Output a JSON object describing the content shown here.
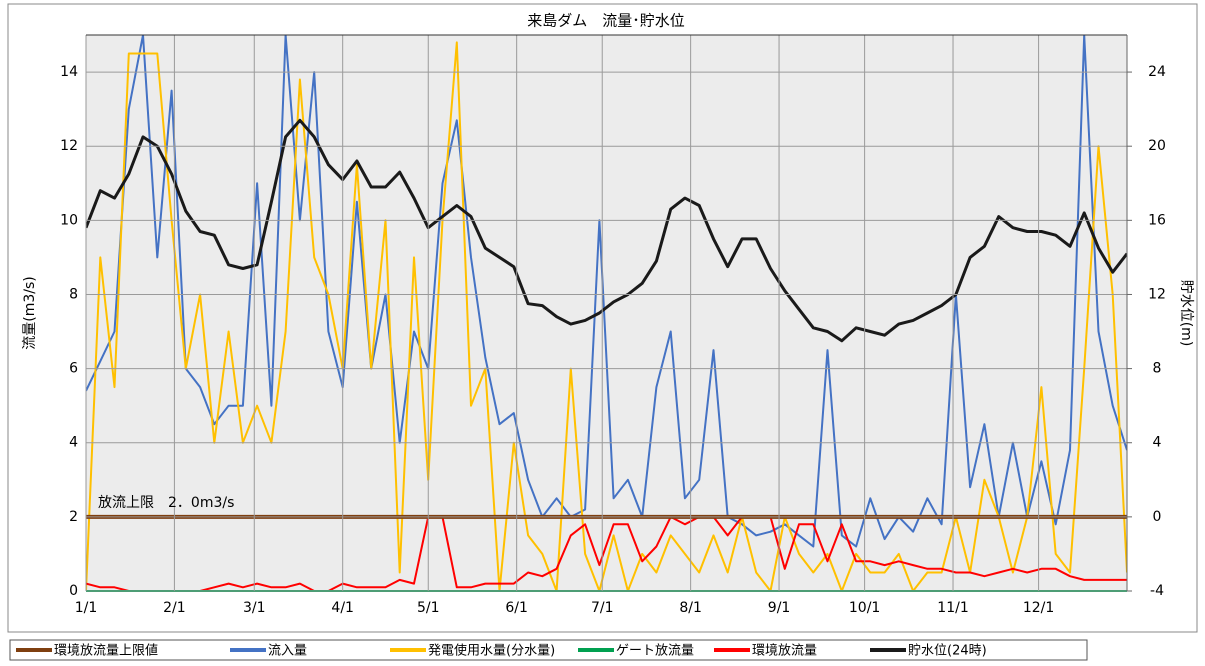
{
  "chart_data": {
    "type": "line",
    "title": "来島ダム　流量･貯水位",
    "ylabel": "流量(m3/s)",
    "y2label": "貯水位(m)",
    "annotation": "放流上限　2．0m3/s",
    "xlim": [
      0,
      365
    ],
    "xticks": [
      {
        "value": 0,
        "label": "1/1"
      },
      {
        "value": 31,
        "label": "2/1"
      },
      {
        "value": 59,
        "label": "3/1"
      },
      {
        "value": 90,
        "label": "4/1"
      },
      {
        "value": 120,
        "label": "5/1"
      },
      {
        "value": 151,
        "label": "6/1"
      },
      {
        "value": 181,
        "label": "7/1"
      },
      {
        "value": 212,
        "label": "8/1"
      },
      {
        "value": 243,
        "label": "9/1"
      },
      {
        "value": 273,
        "label": "10/1"
      },
      {
        "value": 304,
        "label": "11/1"
      },
      {
        "value": 334,
        "label": "12/1"
      }
    ],
    "ylim": [
      0,
      15
    ],
    "yticks": [
      0,
      2,
      4,
      6,
      8,
      10,
      12,
      14
    ],
    "y2lim": [
      -4,
      26
    ],
    "y2ticks": [
      -4,
      0,
      4,
      8,
      12,
      16,
      20,
      24
    ],
    "grid": true,
    "x": [
      0,
      5,
      10,
      15,
      20,
      25,
      30,
      35,
      40,
      45,
      50,
      55,
      60,
      65,
      70,
      75,
      80,
      85,
      90,
      95,
      100,
      105,
      110,
      115,
      120,
      125,
      130,
      135,
      140,
      145,
      150,
      155,
      160,
      165,
      170,
      175,
      180,
      185,
      190,
      195,
      200,
      205,
      210,
      215,
      220,
      225,
      230,
      235,
      240,
      245,
      250,
      255,
      260,
      265,
      270,
      275,
      280,
      285,
      290,
      295,
      300,
      305,
      310,
      315,
      320,
      325,
      330,
      335,
      340,
      345,
      350,
      355,
      360,
      365
    ],
    "series": [
      {
        "name": "環境放流量上限値",
        "color": "#7f3f10",
        "x": [
          0,
          365
        ],
        "values": [
          2,
          2
        ]
      },
      {
        "name": "流入量",
        "color": "#4472c4",
        "values": [
          5.4,
          6.2,
          7,
          13,
          15,
          9,
          13.5,
          6,
          5.5,
          4.5,
          5,
          5,
          11,
          5,
          15,
          10,
          14,
          7,
          5.5,
          10.5,
          6,
          8,
          4,
          7,
          6,
          11,
          12.7,
          9,
          6.3,
          4.5,
          4.8,
          3,
          2,
          2.5,
          2,
          2.2,
          10,
          2.5,
          3,
          2,
          5.5,
          7,
          2.5,
          3,
          6.5,
          2,
          1.8,
          1.5,
          1.6,
          1.8,
          1.5,
          1.2,
          6.5,
          1.5,
          1.2,
          2.5,
          1.4,
          2,
          1.6,
          2.5,
          1.8,
          8,
          2.8,
          4.5,
          2,
          4,
          2,
          3.5,
          1.8,
          3.8,
          15,
          7,
          5,
          3.8
        ]
      },
      {
        "name": "発電使用水量(分水量)",
        "color": "#ffc000",
        "values": [
          0,
          9,
          5.5,
          14.5,
          14.5,
          14.5,
          10,
          6,
          8,
          4,
          7,
          4,
          5,
          4,
          7,
          13.8,
          9,
          8,
          6,
          11.5,
          6,
          10,
          0.5,
          9,
          3,
          10,
          14.8,
          5,
          6,
          0,
          4,
          1.5,
          1,
          0,
          6,
          1,
          0,
          1.5,
          0,
          1,
          0.5,
          1.5,
          1,
          0.5,
          1.5,
          0.5,
          2,
          0.5,
          0,
          2,
          1,
          0.5,
          1,
          0,
          1,
          0.5,
          0.5,
          1,
          0,
          0.5,
          0.5,
          2,
          0.5,
          3,
          2,
          0.5,
          2,
          5.5,
          1,
          0.5,
          6,
          12,
          8,
          0.5
        ]
      },
      {
        "name": "ゲート放流量",
        "color": "#00a050",
        "x": [
          0,
          365
        ],
        "values": [
          0,
          0
        ]
      },
      {
        "name": "環境放流量",
        "color": "#ff0000",
        "values": [
          0.2,
          0.1,
          0.1,
          0,
          0,
          0,
          0,
          0,
          0,
          0.1,
          0.2,
          0.1,
          0.2,
          0.1,
          0.1,
          0.2,
          0,
          0,
          0.2,
          0.1,
          0.1,
          0.1,
          0.3,
          0.2,
          2,
          2,
          0.1,
          0.1,
          0.2,
          0.2,
          0.2,
          0.5,
          0.4,
          0.6,
          1.5,
          1.8,
          0.7,
          1.8,
          1.8,
          0.8,
          1.2,
          2,
          1.8,
          2,
          2,
          1.5,
          2,
          2,
          2,
          0.6,
          1.8,
          1.8,
          0.8,
          1.8,
          0.8,
          0.8,
          0.7,
          0.8,
          0.7,
          0.6,
          0.6,
          0.5,
          0.5,
          0.4,
          0.5,
          0.6,
          0.5,
          0.6,
          0.6,
          0.4,
          0.3,
          0.3,
          0.3,
          0.3
        ]
      },
      {
        "name": "貯水位(24時)",
        "color": "#1a1a1a",
        "axis": "y2",
        "values": [
          15.6,
          17.6,
          17.2,
          18.5,
          20.5,
          20,
          18.5,
          16.5,
          15.4,
          15.2,
          13.6,
          13.4,
          13.6,
          17,
          20.5,
          21.4,
          20.5,
          19,
          18.2,
          19.2,
          17.8,
          17.8,
          18.6,
          17.2,
          15.6,
          16.2,
          16.8,
          16.2,
          14.5,
          14,
          13.5,
          11.5,
          11.4,
          10.8,
          10.4,
          10.6,
          11,
          11.6,
          12,
          12.6,
          13.8,
          16.6,
          17.2,
          16.8,
          15,
          13.5,
          15,
          15,
          13.4,
          12.2,
          11.2,
          10.2,
          10,
          9.5,
          10.2,
          10,
          9.8,
          10.4,
          10.6,
          11,
          11.4,
          12,
          14,
          14.6,
          16.2,
          15.6,
          15.4,
          15.4,
          15.2,
          14.6,
          16.4,
          14.5,
          13.2,
          14.2
        ]
      }
    ]
  }
}
